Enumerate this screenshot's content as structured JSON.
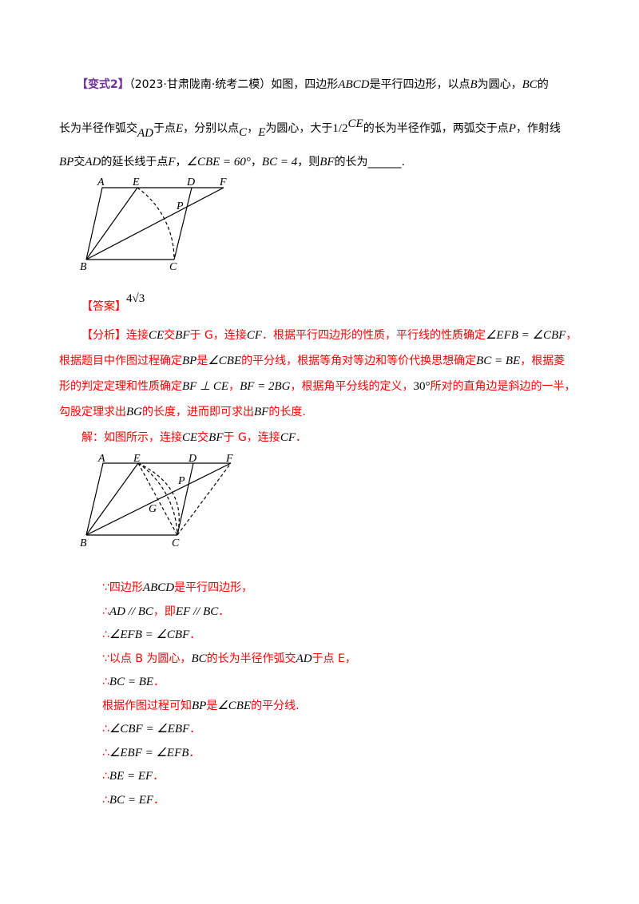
{
  "problem": {
    "tag": "【变式2】",
    "source": "（2023·甘肃陇南·统考二模）",
    "l1a": "如图，四边形",
    "l1m1": "ABCD",
    "l1b": "是平行四边形，以点",
    "l1m2": "B",
    "l1c": "为圆心，",
    "l1m3": "BC",
    "l1d": "的",
    "l2a": "长为半径作弧交",
    "l2m1": "AD",
    "l2b": "于点",
    "l2m2": "E",
    "l2c": "，分别以点",
    "l2m3": "C",
    "l2d": "，",
    "l2m4": "E",
    "l2e": "为圆心，大于",
    "l2frac": "1/2",
    "l2m5": "CE",
    "l2f": "的长为半径作弧，两弧交于点",
    "l2m6": "P",
    "l2g": "，作射线",
    "l3m1": "BP",
    "l3a": "交",
    "l3m2": "AD",
    "l3b": "的延长线于点",
    "l3m3": "F",
    "l3c": "，",
    "l3m4": "∠CBE = 60°",
    "l3d": "，",
    "l3m5": "BC = 4",
    "l3e": "，则",
    "l3m6": "BF",
    "l3f": "的长为______."
  },
  "figure1_labels": {
    "A": "A",
    "E": "E",
    "D": "D",
    "F": "F",
    "P": "P",
    "B": "B",
    "C": "C"
  },
  "answer": {
    "label": "【答案】",
    "value": "4√3"
  },
  "analysis": {
    "label": "【分析】",
    "l1": [
      "连接",
      "CE",
      "交",
      "BF",
      "于 G，连接",
      "CF",
      "．根据平行四边形的性质，平行线的性质确定",
      "∠EFB = ∠CBF",
      "，"
    ],
    "l2": [
      "根据题目中作图过程确定",
      "BP",
      "是",
      "∠CBE",
      "的平分线，根据等角对等边和等价代换思想确定",
      "BC = BE",
      "，根据菱"
    ],
    "l3": [
      "形的判定定理和性质确定",
      "BF ⊥ CE",
      "，",
      "BF = 2BG",
      "，根据角平分线的定义，",
      "30°",
      "所对的直角边是斜边的一半，"
    ],
    "l4": [
      "勾股定理求出",
      "BG",
      "的长度，进而即可求出",
      "BF",
      "的长度."
    ],
    "l5": [
      "解：如图所示，连接",
      "CE",
      "交",
      "BF",
      "于 G，连接",
      "CF",
      "．"
    ]
  },
  "figure2_labels": {
    "A": "A",
    "E": "E",
    "D": "D",
    "F": "F",
    "P": "P",
    "G": "G",
    "B": "B",
    "C": "C"
  },
  "steps": [
    {
      "sym": "∵",
      "parts": [
        "四边形",
        "ABCD",
        "是平行四边形，"
      ]
    },
    {
      "sym": "∴",
      "parts": [
        "",
        "AD // BC",
        "，即",
        "EF // BC",
        "．"
      ]
    },
    {
      "sym": "∴",
      "parts": [
        "",
        "∠EFB = ∠CBF",
        "．"
      ]
    },
    {
      "sym": "∵",
      "parts": [
        "以点 B 为圆心，",
        "BC",
        "的长为半径作弧交",
        "AD",
        "于点 E，"
      ]
    },
    {
      "sym": "∴",
      "parts": [
        "",
        "BC = BE",
        "．"
      ]
    },
    {
      "sym": "",
      "parts": [
        "根据作图过程可知",
        "BP",
        "是",
        "∠CBE",
        "的平分线."
      ]
    },
    {
      "sym": "∴",
      "parts": [
        "",
        "∠CBF = ∠EBF",
        "．"
      ]
    },
    {
      "sym": "∴",
      "parts": [
        "",
        "∠EBF = ∠EFB",
        "．"
      ]
    },
    {
      "sym": "∴",
      "parts": [
        "",
        "BE = EF",
        "．"
      ]
    },
    {
      "sym": "∴",
      "parts": [
        "",
        "BC = EF",
        "．"
      ]
    }
  ],
  "colors": {
    "tag": "#7030a0",
    "analysis": "#ff0000",
    "text": "#000000"
  }
}
